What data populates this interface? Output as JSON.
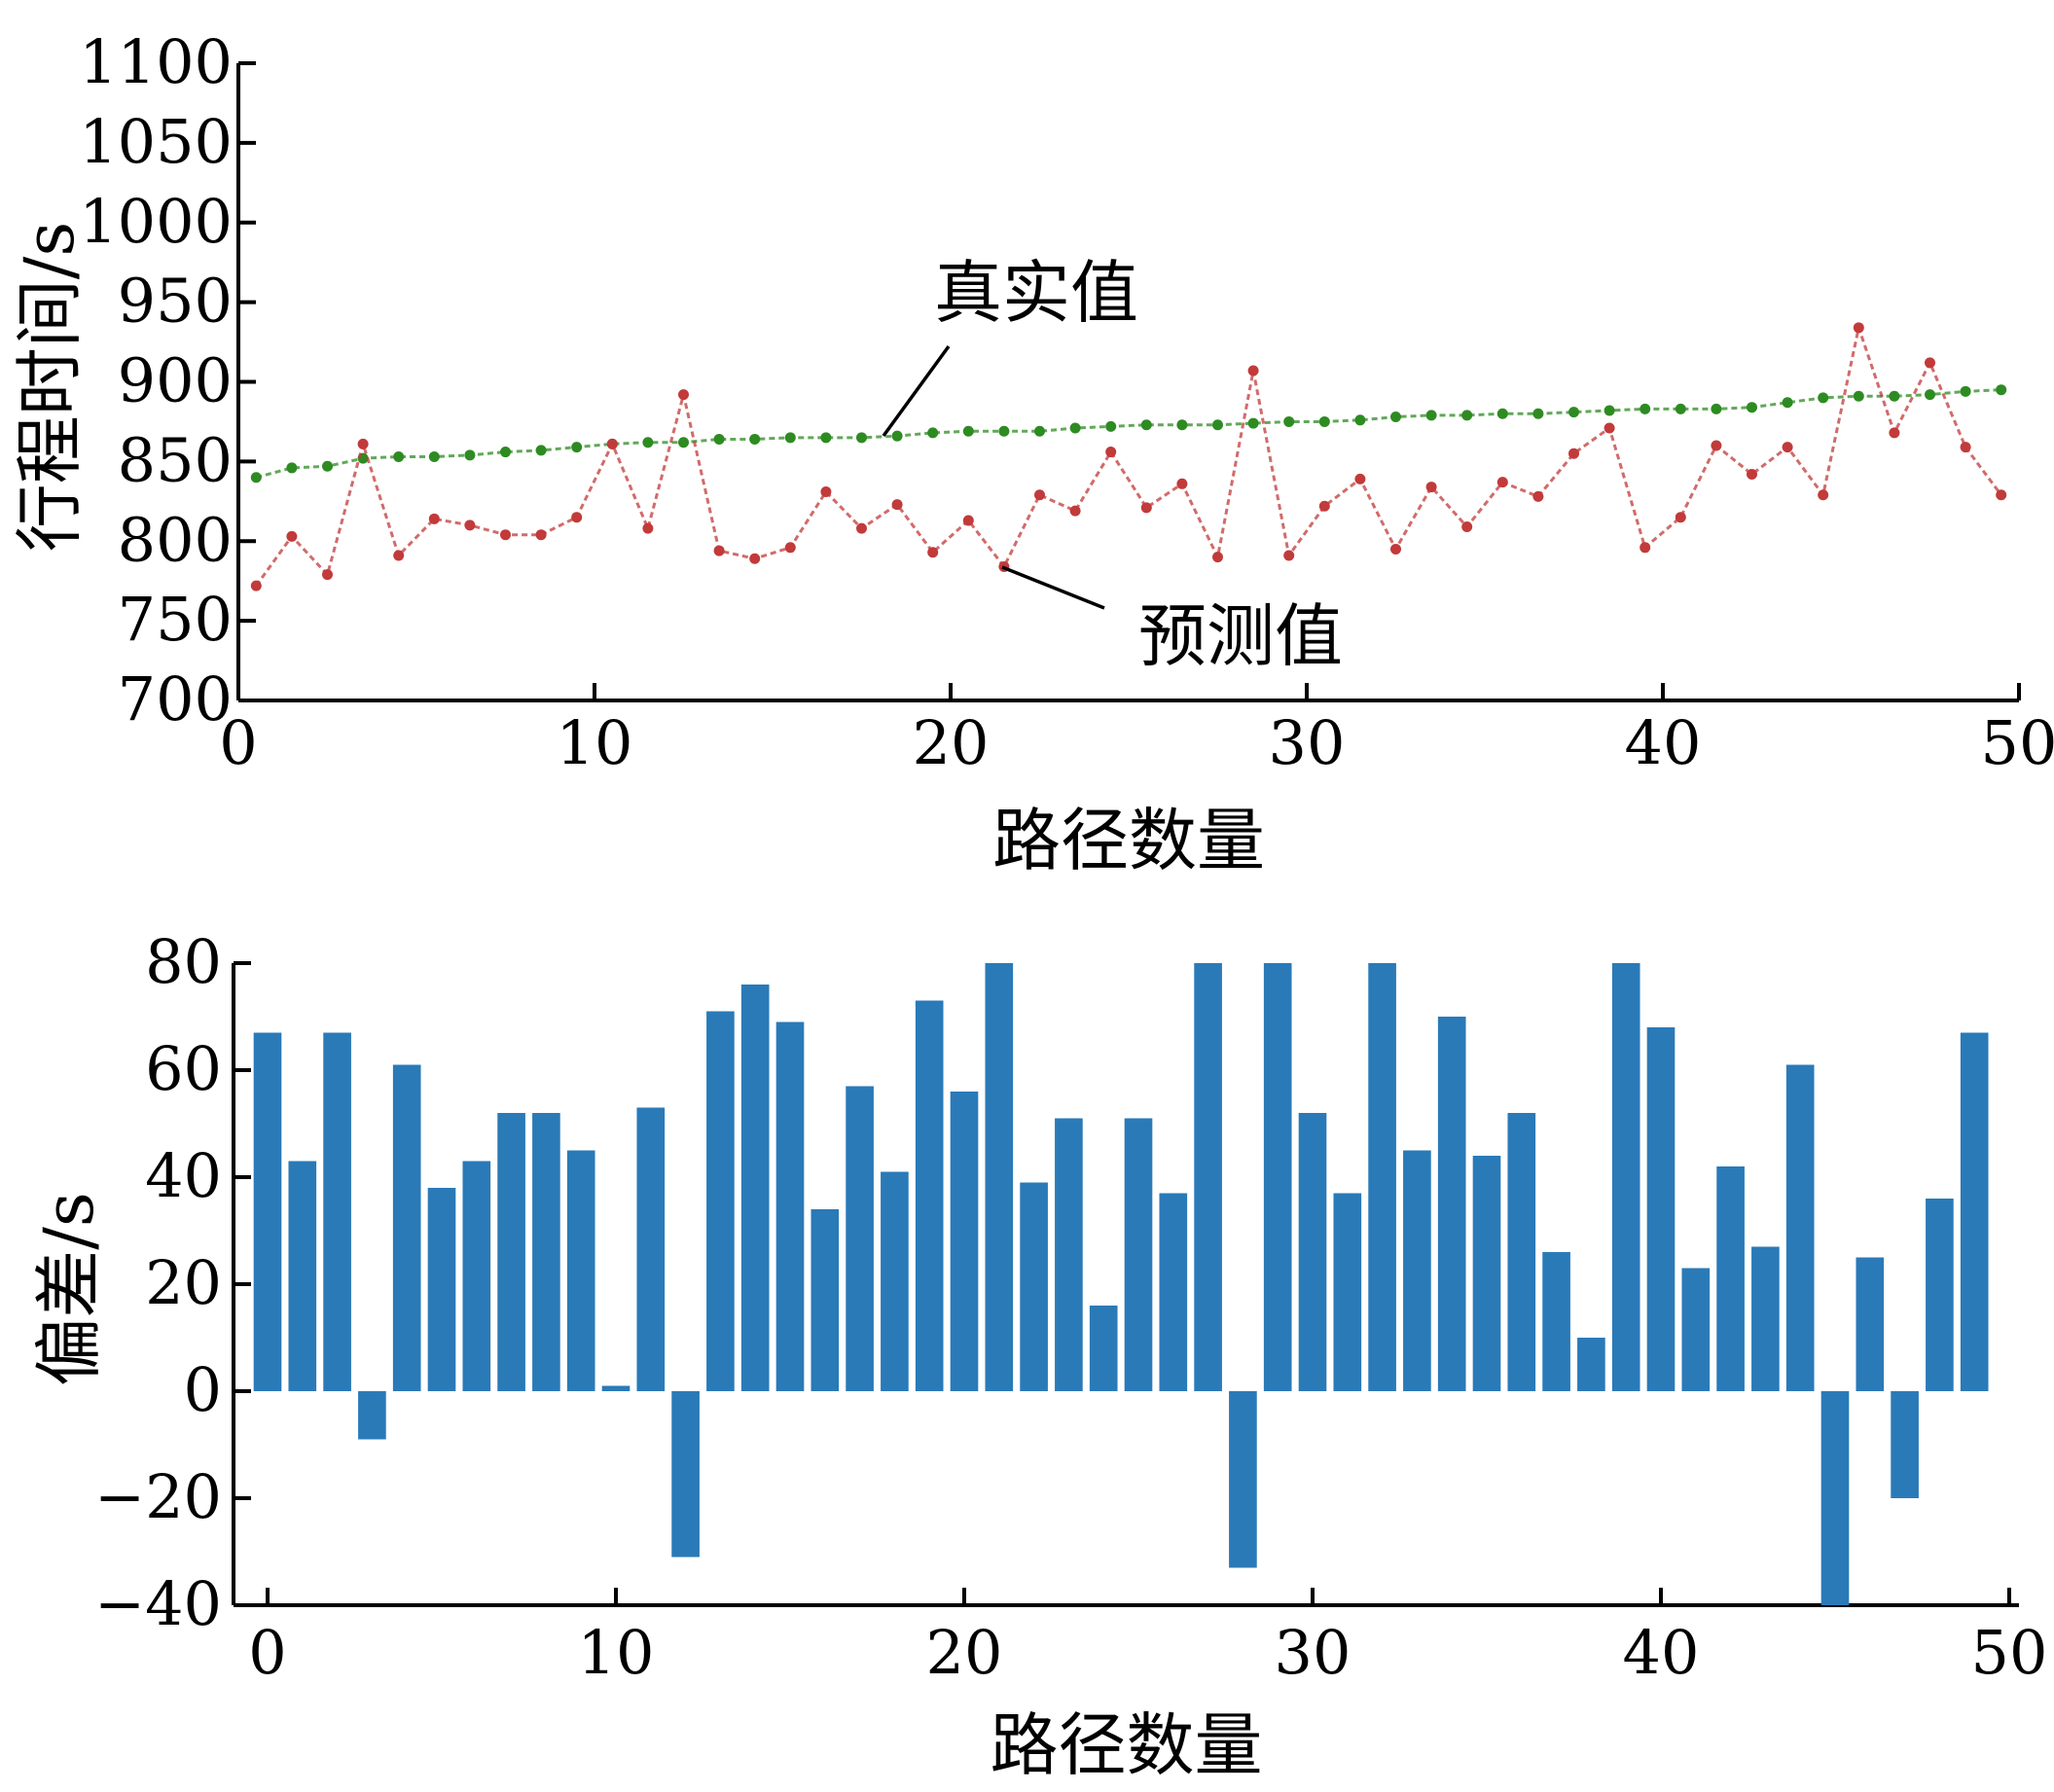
{
  "chart_data": [
    {
      "type": "line",
      "title": "",
      "xlabel": "路径数量",
      "ylabel": "行程时间/s",
      "xlim": [
        0,
        50
      ],
      "ylim": [
        700,
        1100
      ],
      "xticks": [
        "0",
        "10",
        "20",
        "30",
        "40",
        "50"
      ],
      "yticks": [
        "700",
        "750",
        "800",
        "850",
        "900",
        "950",
        "1000",
        "1050",
        "1100"
      ],
      "grid": false,
      "series": [
        {
          "name": "真实值",
          "color": "#2e8b22",
          "style": "dashed-with-dots",
          "x": [
            0.5,
            1.5,
            2.5,
            3.5,
            4.5,
            5.5,
            6.5,
            7.5,
            8.5,
            9.5,
            10.5,
            11.5,
            12.5,
            13.5,
            14.5,
            15.5,
            16.5,
            17.5,
            18.5,
            19.5,
            20.5,
            21.5,
            22.5,
            23.5,
            24.5,
            25.5,
            26.5,
            27.5,
            28.5,
            29.5,
            30.5,
            31.5,
            32.5,
            33.5,
            34.5,
            35.5,
            36.5,
            37.5,
            38.5,
            39.5,
            40.5,
            41.5,
            42.5,
            43.5,
            44.5,
            45.5,
            46.5,
            47.5,
            48.5,
            49.5
          ],
          "values": [
            840,
            846,
            847,
            852,
            853,
            853,
            854,
            856,
            857,
            859,
            861,
            862,
            862,
            864,
            864,
            865,
            865,
            865,
            866,
            868,
            869,
            869,
            869,
            871,
            872,
            873,
            873,
            873,
            874,
            875,
            875,
            876,
            878,
            879,
            879,
            880,
            880,
            881,
            882,
            883,
            883,
            883,
            884,
            887,
            890,
            891,
            891,
            892,
            894,
            895
          ]
        },
        {
          "name": "预测值",
          "color": "#c23a3a",
          "style": "dashed-with-dots",
          "x": [
            0.5,
            1.5,
            2.5,
            3.5,
            4.5,
            5.5,
            6.5,
            7.5,
            8.5,
            9.5,
            10.5,
            11.5,
            12.5,
            13.5,
            14.5,
            15.5,
            16.5,
            17.5,
            18.5,
            19.5,
            20.5,
            21.5,
            22.5,
            23.5,
            24.5,
            25.5,
            26.5,
            27.5,
            28.5,
            29.5,
            30.5,
            31.5,
            32.5,
            33.5,
            34.5,
            35.5,
            36.5,
            37.5,
            38.5,
            39.5,
            40.5,
            41.5,
            42.5,
            43.5,
            44.5,
            45.5,
            46.5,
            47.5,
            48.5,
            49.5
          ],
          "values": [
            772,
            803,
            779,
            861,
            791,
            814,
            810,
            804,
            804,
            815,
            861,
            808,
            892,
            794,
            789,
            796,
            831,
            808,
            823,
            793,
            813,
            784,
            829,
            819,
            856,
            821,
            836,
            790,
            907,
            791,
            822,
            839,
            795,
            834,
            809,
            837,
            828,
            855,
            871,
            796,
            815,
            860,
            842,
            859,
            829,
            934,
            868,
            912,
            859,
            829
          ]
        }
      ],
      "annotations": [
        {
          "text": "真实值",
          "series": "真实值"
        },
        {
          "text": "预测值",
          "series": "预测值"
        }
      ]
    },
    {
      "type": "bar",
      "title": "",
      "xlabel": "路径数量",
      "ylabel": "偏差/s",
      "xlim": [
        0,
        50
      ],
      "ylim": [
        -40,
        80
      ],
      "xticks": [
        "0",
        "10",
        "20",
        "30",
        "40",
        "50"
      ],
      "yticks": [
        "−40",
        "−20",
        "0",
        "20",
        "40",
        "60",
        "80"
      ],
      "grid": false,
      "color": "#2a7ab8",
      "categories": [
        0,
        1,
        2,
        3,
        4,
        5,
        6,
        7,
        8,
        9,
        10,
        11,
        12,
        13,
        14,
        15,
        16,
        17,
        18,
        19,
        20,
        21,
        22,
        23,
        24,
        25,
        26,
        27,
        28,
        29,
        30,
        31,
        32,
        33,
        34,
        35,
        36,
        37,
        38,
        39,
        40,
        41,
        42,
        43,
        44,
        45,
        46,
        47,
        48,
        49
      ],
      "values": [
        67,
        43,
        67,
        -9,
        61,
        38,
        43,
        52,
        52,
        45,
        1,
        53,
        -31,
        71,
        76,
        69,
        34,
        57,
        41,
        73,
        56,
        80,
        39,
        51,
        16,
        51,
        37,
        80,
        -33,
        80,
        52,
        37,
        80,
        45,
        70,
        44,
        52,
        26,
        10,
        80,
        68,
        23,
        42,
        27,
        61,
        -40,
        25,
        -20,
        36,
        67
      ]
    }
  ]
}
